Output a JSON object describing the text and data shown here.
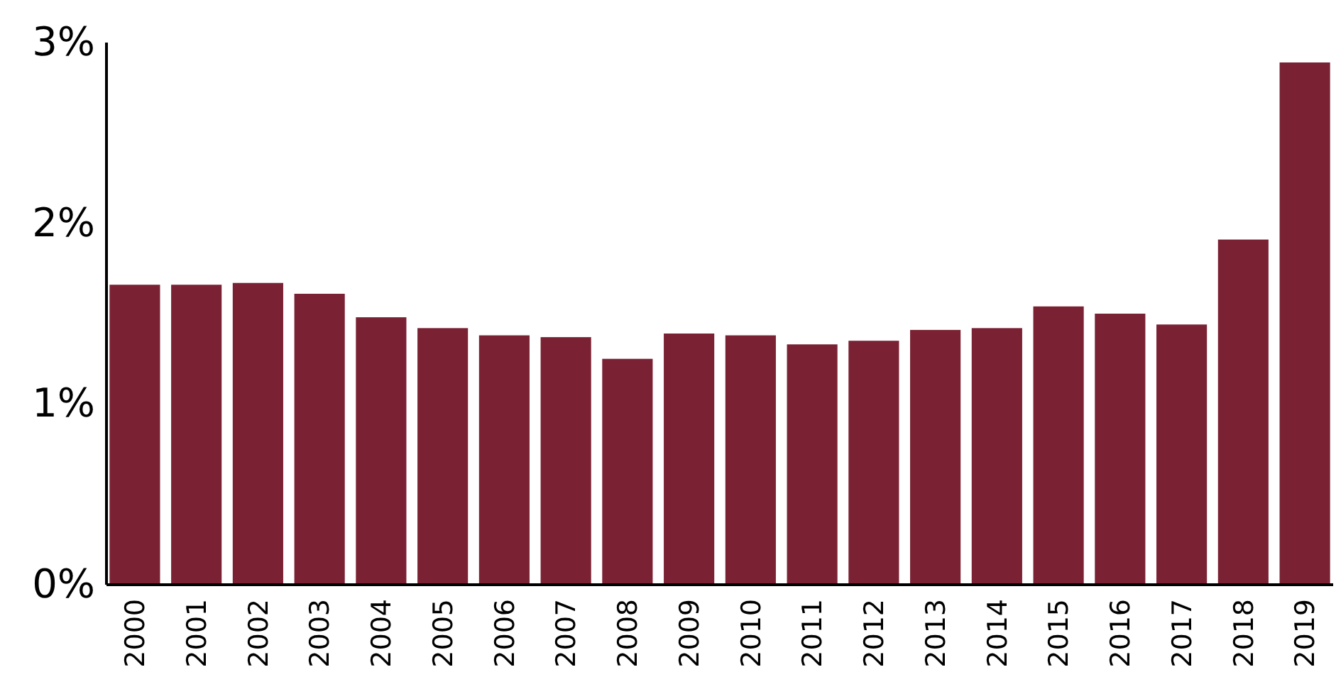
{
  "chart_data": {
    "type": "bar",
    "categories": [
      "2000",
      "2001",
      "2002",
      "2003",
      "2004",
      "2005",
      "2006",
      "2007",
      "2008",
      "2009",
      "2010",
      "2011",
      "2012",
      "2013",
      "2014",
      "2015",
      "2016",
      "2017",
      "2018",
      "2019"
    ],
    "values": [
      1.66,
      1.66,
      1.67,
      1.61,
      1.48,
      1.42,
      1.38,
      1.37,
      1.25,
      1.39,
      1.38,
      1.33,
      1.35,
      1.41,
      1.42,
      1.54,
      1.5,
      1.44,
      1.91,
      2.89
    ],
    "color": "#7a2233",
    "ylim": [
      0,
      3
    ],
    "yticks": [
      {
        "value": 0,
        "label": "0%"
      },
      {
        "value": 1,
        "label": "1%"
      },
      {
        "value": 2,
        "label": "2%"
      },
      {
        "value": 3,
        "label": "3%"
      }
    ],
    "grid": false
  }
}
